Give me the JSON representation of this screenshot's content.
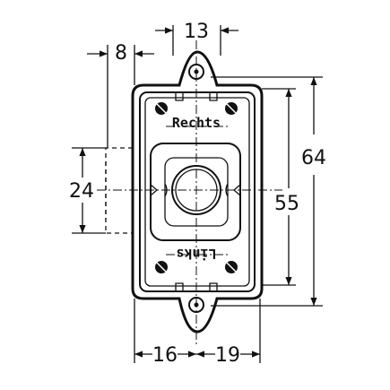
{
  "dimensions": {
    "top_width": "13",
    "top_left_offset": "8",
    "total_height": "64",
    "inner_height": "55",
    "side_height": "24",
    "bottom_left": "16",
    "bottom_right": "19"
  },
  "labels": {
    "top": "Rechts",
    "bottom": "Links"
  }
}
